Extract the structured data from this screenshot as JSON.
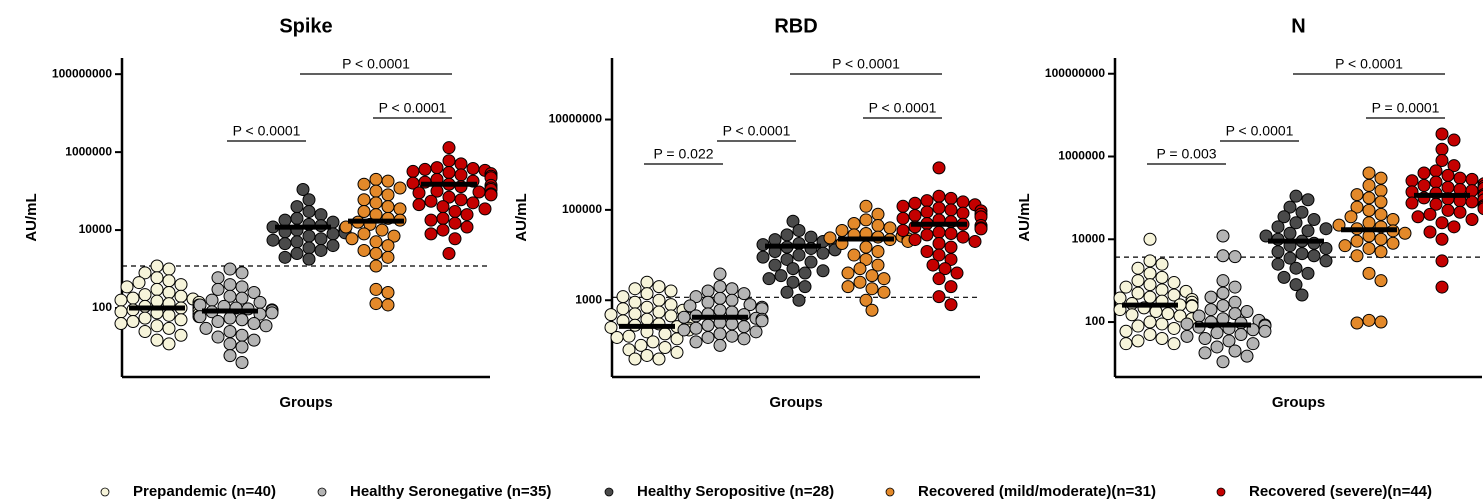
{
  "chart_data": [
    {
      "type": "scatter",
      "title": "Spike",
      "y_label": "AU/mL",
      "x_label": "Groups",
      "log": true,
      "grid": false,
      "ylim": [
        1.7,
        260000000
      ],
      "yticks": [
        100,
        10000,
        1000000,
        100000000
      ],
      "threshold": 1200,
      "series": [
        {
          "median": 100,
          "values": [
            1200,
            1000,
            800,
            600,
            500,
            450,
            400,
            350,
            300,
            250,
            220,
            200,
            180,
            170,
            160,
            150,
            140,
            130,
            120,
            110,
            100,
            100,
            95,
            90,
            85,
            80,
            75,
            70,
            65,
            60,
            55,
            50,
            45,
            40,
            35,
            30,
            25,
            20,
            15,
            12
          ]
        },
        {
          "median": 84,
          "values": [
            1000,
            800,
            600,
            400,
            350,
            300,
            250,
            200,
            180,
            160,
            140,
            120,
            110,
            100,
            95,
            90,
            85,
            80,
            75,
            70,
            60,
            55,
            50,
            45,
            40,
            35,
            30,
            25,
            20,
            18,
            15,
            12,
            10,
            6,
            4
          ]
        },
        {
          "median": 11900,
          "values": [
            110000,
            60000,
            40000,
            30000,
            25000,
            20000,
            18000,
            16000,
            14000,
            13000,
            12000,
            11000,
            10000,
            9500,
            9000,
            8500,
            8000,
            7000,
            6000,
            5500,
            5000,
            4500,
            4000,
            3500,
            3000,
            2500,
            2000,
            1800
          ]
        },
        {
          "median": 17000,
          "values": [
            200000,
            180000,
            150000,
            120000,
            100000,
            80000,
            60000,
            50000,
            40000,
            35000,
            30000,
            25000,
            20000,
            18000,
            16000,
            14000,
            12000,
            10000,
            8000,
            7000,
            6000,
            5000,
            4000,
            3000,
            2500,
            2000,
            1200,
            300,
            250,
            130,
            120
          ]
        },
        {
          "median": 150000,
          "values": [
            1300000,
            600000,
            500000,
            400000,
            380000,
            360000,
            340000,
            320000,
            300000,
            280000,
            260000,
            240000,
            220000,
            200000,
            180000,
            170000,
            160000,
            150000,
            140000,
            130000,
            120000,
            110000,
            100000,
            95000,
            90000,
            85000,
            80000,
            70000,
            60000,
            55000,
            50000,
            45000,
            40000,
            35000,
            30000,
            25000,
            20000,
            18000,
            15000,
            12000,
            10000,
            8000,
            6000,
            2500
          ]
        }
      ],
      "annotations": [
        {
          "text": "P < 0.0001",
          "from": 1,
          "to": 2
        },
        {
          "text": "P < 0.0001",
          "from": 3,
          "to": 4
        },
        {
          "text": "P < 0.0001",
          "from": 2,
          "to": 4
        }
      ]
    },
    {
      "type": "scatter",
      "title": "RBD",
      "y_label": "AU/mL",
      "x_label": "Groups",
      "log": true,
      "grid": false,
      "ylim": [
        20,
        230000000
      ],
      "yticks": [
        1000,
        100000,
        10000000
      ],
      "threshold": 1160,
      "series": [
        {
          "median": 264,
          "values": [
            2500,
            2000,
            1800,
            1600,
            1400,
            1200,
            1000,
            900,
            800,
            700,
            650,
            600,
            550,
            500,
            480,
            450,
            420,
            400,
            380,
            350,
            320,
            300,
            280,
            260,
            250,
            240,
            220,
            200,
            180,
            160,
            150,
            140,
            120,
            100,
            90,
            80,
            70,
            60,
            50,
            50
          ]
        },
        {
          "median": 420,
          "values": [
            3800,
            2000,
            1800,
            1600,
            1400,
            1200,
            1100,
            1000,
            900,
            800,
            750,
            700,
            650,
            600,
            550,
            500,
            480,
            450,
            420,
            400,
            380,
            350,
            320,
            300,
            280,
            260,
            240,
            220,
            200,
            180,
            160,
            150,
            140,
            120,
            100
          ]
        },
        {
          "median": 15800,
          "values": [
            56000,
            35000,
            28000,
            25000,
            22000,
            20000,
            18000,
            17000,
            16000,
            15000,
            14000,
            13000,
            12000,
            11000,
            10000,
            9000,
            8000,
            7000,
            6000,
            5000,
            4500,
            4000,
            3500,
            3000,
            2500,
            2000,
            1500,
            1000
          ]
        },
        {
          "median": 22700,
          "values": [
            120000,
            80000,
            60000,
            50000,
            45000,
            40000,
            35000,
            30000,
            28000,
            26000,
            25000,
            24000,
            23000,
            22000,
            20000,
            18000,
            15000,
            12000,
            10000,
            8000,
            6000,
            5000,
            4000,
            3500,
            3000,
            2500,
            2000,
            1800,
            1500,
            1000,
            600
          ]
        },
        {
          "median": 48000,
          "values": [
            850000,
            200000,
            180000,
            160000,
            150000,
            140000,
            130000,
            120000,
            110000,
            100000,
            95000,
            90000,
            85000,
            80000,
            75000,
            70000,
            65000,
            60000,
            55000,
            50000,
            48000,
            45000,
            42000,
            40000,
            38000,
            35000,
            32000,
            30000,
            28000,
            25000,
            22000,
            20000,
            18000,
            15000,
            12000,
            10000,
            8000,
            6000,
            5000,
            4000,
            3000,
            2000,
            1200,
            800
          ]
        }
      ],
      "annotations": [
        {
          "text": "P = 0.022",
          "from": 0,
          "to": 1
        },
        {
          "text": "P < 0.0001",
          "from": 1,
          "to": 2
        },
        {
          "text": "P < 0.0001",
          "from": 3,
          "to": 4
        },
        {
          "text": "P < 0.0001",
          "from": 2,
          "to": 4
        }
      ]
    },
    {
      "type": "scatter",
      "title": "N",
      "y_label": "AU/mL",
      "x_label": "Groups",
      "log": true,
      "grid": false,
      "ylim": [
        4.7,
        240000000
      ],
      "yticks": [
        100,
        10000,
        1000000,
        100000000
      ],
      "threshold": 3700,
      "series": [
        {
          "median": 257,
          "values": [
            10000,
            3000,
            2500,
            2000,
            1500,
            1200,
            1000,
            900,
            800,
            700,
            600,
            550,
            500,
            450,
            400,
            380,
            350,
            320,
            300,
            280,
            260,
            250,
            240,
            220,
            200,
            180,
            160,
            150,
            140,
            120,
            100,
            90,
            80,
            70,
            60,
            50,
            40,
            35,
            30,
            30
          ]
        },
        {
          "median": 85,
          "values": [
            12000,
            4000,
            3800,
            1000,
            700,
            500,
            400,
            300,
            250,
            200,
            180,
            160,
            140,
            120,
            110,
            100,
            95,
            90,
            85,
            80,
            75,
            70,
            65,
            60,
            55,
            50,
            45,
            40,
            35,
            30,
            25,
            20,
            18,
            15,
            11
          ]
        },
        {
          "median": 9000,
          "values": [
            110000,
            90000,
            60000,
            45000,
            35000,
            30000,
            25000,
            20000,
            18000,
            16000,
            14000,
            12000,
            10000,
            9000,
            8000,
            7000,
            6000,
            5000,
            4500,
            4000,
            3500,
            3000,
            2500,
            2000,
            1500,
            1200,
            800,
            450
          ]
        },
        {
          "median": 17000,
          "values": [
            400000,
            300000,
            200000,
            150000,
            120000,
            100000,
            80000,
            60000,
            50000,
            40000,
            35000,
            30000,
            25000,
            22000,
            20000,
            18000,
            16000,
            14000,
            12000,
            10000,
            9000,
            8000,
            7000,
            6000,
            5000,
            4000,
            1500,
            1000,
            110,
            100,
            95
          ]
        },
        {
          "median": 115000,
          "values": [
            3500000,
            2500000,
            1500000,
            800000,
            600000,
            450000,
            400000,
            350000,
            300000,
            280000,
            260000,
            240000,
            220000,
            200000,
            190000,
            180000,
            170000,
            160000,
            150000,
            140000,
            130000,
            120000,
            110000,
            100000,
            95000,
            90000,
            85000,
            80000,
            75000,
            70000,
            65000,
            60000,
            55000,
            50000,
            45000,
            40000,
            35000,
            30000,
            25000,
            20000,
            15000,
            10000,
            3000,
            700
          ]
        }
      ],
      "annotations": [
        {
          "text": "P = 0.003",
          "from": 0,
          "to": 1
        },
        {
          "text": "P < 0.0001",
          "from": 1,
          "to": 2
        },
        {
          "text": "P = 0.0001",
          "from": 3,
          "to": 4
        },
        {
          "text": "P < 0.0001",
          "from": 2,
          "to": 4
        }
      ]
    }
  ],
  "legend": [
    {
      "name": "Prepandemic (n=40)",
      "color": "#f6f4da"
    },
    {
      "name": "Healthy Seronegative (n=35)",
      "color": "#b4b4b4"
    },
    {
      "name": "Healthy Seropositive (n=28)",
      "color": "#4a4a4a"
    },
    {
      "name": "Recovered (mild/moderate)(n=31)",
      "color": "#e3892a"
    },
    {
      "name": "Recovered (severe)(n=44)",
      "color": "#c40000"
    }
  ]
}
